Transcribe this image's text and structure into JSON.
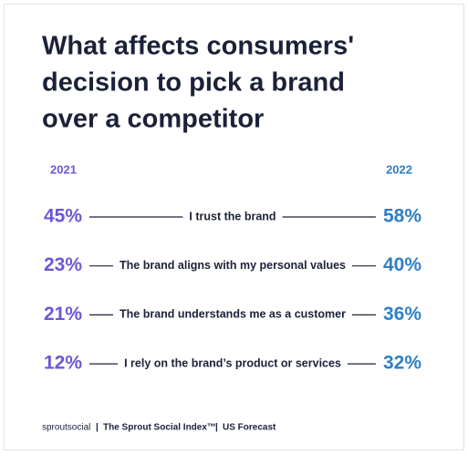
{
  "chart_data": {
    "type": "comparison",
    "title": [
      "What affects consumers'",
      "decision to pick a brand",
      "over a competitor"
    ],
    "categories": [
      "I trust the brand",
      "The brand aligns with my personal values",
      "The brand understands me as a customer",
      "I rely on the brand’s product or services"
    ],
    "series": [
      {
        "name": "2021",
        "color": "#6a58d4",
        "values": [
          45,
          23,
          21,
          12
        ],
        "value_labels": [
          "45%",
          "23%",
          "21%",
          "12%"
        ]
      },
      {
        "name": "2022",
        "color": "#2f7fc6",
        "values": [
          58,
          40,
          36,
          32
        ],
        "value_labels": [
          "58%",
          "40%",
          "36%",
          "32%"
        ]
      }
    ],
    "footer": {
      "brand": "sproutsocial",
      "source": "The Sprout Social Index™",
      "region": "US Forecast"
    }
  }
}
